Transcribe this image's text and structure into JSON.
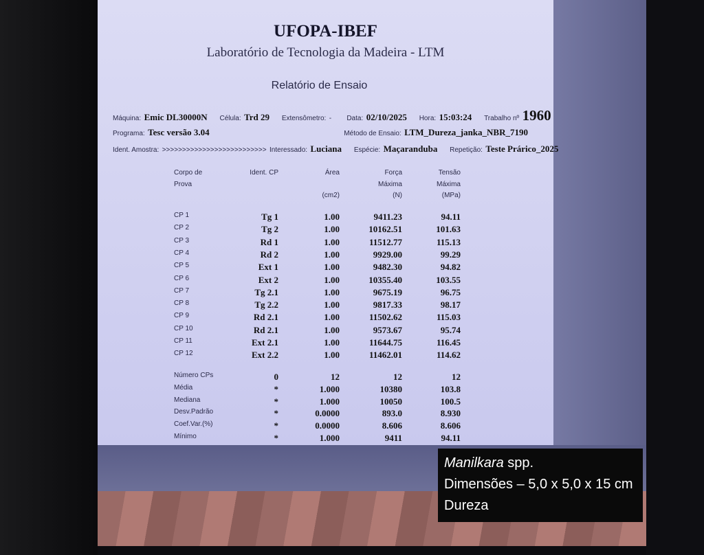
{
  "header": {
    "org": "UFOPA-IBEF",
    "lab": "Laboratório de Tecnologia da Madeira - LTM",
    "report_title": "Relatório de Ensaio"
  },
  "meta": {
    "maquina_label": "Máquina:",
    "maquina": "Emic DL30000N",
    "celula_label": "Célula:",
    "celula": "Trd 29",
    "extensometro_label": "Extensômetro:",
    "extensometro": "-",
    "data_label": "Data:",
    "data": "02/10/2025",
    "hora_label": "Hora:",
    "hora": "15:03:24",
    "trabalho_label": "Trabalho nº",
    "trabalho": "1960",
    "programa_label": "Programa:",
    "programa": "Tesc versão 3.04",
    "metodo_label": "Método de Ensaio:",
    "metodo": "LTM_Dureza_janka_NBR_7190",
    "amostra_label": "Ident. Amostra:",
    "amostra": ">>>>>>>>>>>>>>>>>>>>>>>>>>",
    "interessado_label": "Interessado:",
    "interessado": "Luciana",
    "especie_label": "Espécie:",
    "especie": "Maçaranduba",
    "repeticao_label": "Repetição:",
    "repeticao": "Teste Prárico_2025"
  },
  "table": {
    "headers": [
      {
        "l1": "Corpo de",
        "l2": "Prova",
        "l3": ""
      },
      {
        "l1": "Ident. CP",
        "l2": "",
        "l3": ""
      },
      {
        "l1": "Área",
        "l2": "",
        "l3": "(cm2)"
      },
      {
        "l1": "Força",
        "l2": "Máxima",
        "l3": "(N)"
      },
      {
        "l1": "Tensão",
        "l2": "Máxima",
        "l3": "(MPa)"
      }
    ],
    "rows": [
      [
        "CP 1",
        "Tg 1",
        "1.00",
        "9411.23",
        "94.11"
      ],
      [
        "CP 2",
        "Tg 2",
        "1.00",
        "10162.51",
        "101.63"
      ],
      [
        "CP 3",
        "Rd 1",
        "1.00",
        "11512.77",
        "115.13"
      ],
      [
        "CP 4",
        "Rd 2",
        "1.00",
        "9929.00",
        "99.29"
      ],
      [
        "CP 5",
        "Ext 1",
        "1.00",
        "9482.30",
        "94.82"
      ],
      [
        "CP 6",
        "Ext 2",
        "1.00",
        "10355.40",
        "103.55"
      ],
      [
        "CP 7",
        "Tg 2.1",
        "1.00",
        "9675.19",
        "96.75"
      ],
      [
        "CP 8",
        "Tg 2.2",
        "1.00",
        "9817.33",
        "98.17"
      ],
      [
        "CP 9",
        "Rd 2.1",
        "1.00",
        "11502.62",
        "115.03"
      ],
      [
        "CP 10",
        "Rd 2.1",
        "1.00",
        "9573.67",
        "95.74"
      ],
      [
        "CP 11",
        "Ext 2.1",
        "1.00",
        "11644.75",
        "116.45"
      ],
      [
        "CP 12",
        "Ext 2.2",
        "1.00",
        "11462.01",
        "114.62"
      ]
    ],
    "stats": [
      [
        "Número CPs",
        "0",
        "12",
        "12",
        "12"
      ],
      [
        "Média",
        "*",
        "1.000",
        "10380",
        "103.8"
      ],
      [
        "Mediana",
        "*",
        "1.000",
        "10050",
        "100.5"
      ],
      [
        "Desv.Padrão",
        "*",
        "0.0000",
        "893.0",
        "8.930"
      ],
      [
        "Coef.Var.(%)",
        "*",
        "0.0000",
        "8.606",
        "8.606"
      ],
      [
        "Mínimo",
        "*",
        "1.000",
        "9411",
        "94.11"
      ]
    ]
  },
  "caption": {
    "genus": "Manilkara",
    "spp": " spp.",
    "dimensions": "Dimensões – 5,0 x 5,0 x 15 cm",
    "test": "Dureza"
  }
}
